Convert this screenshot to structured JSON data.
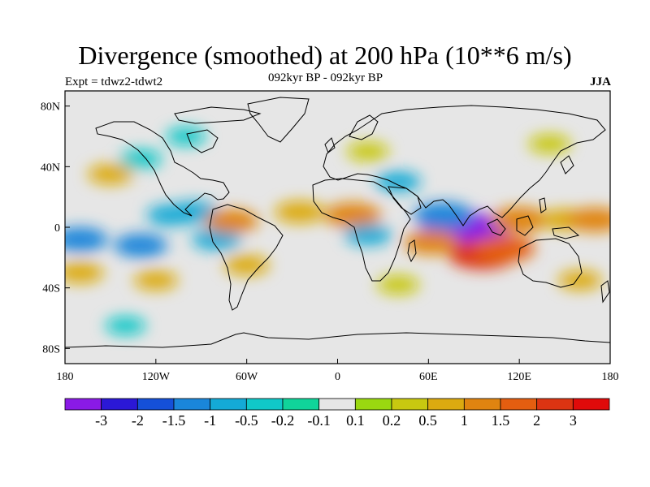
{
  "title": "Divergence (smoothed) at 200 hPa (10**6 m/s)",
  "subtitle": "092kyr BP - 092kyr BP",
  "left_label": "Expt = tdwz2-tdwt2",
  "right_label": "JJA",
  "map": {
    "projection": "cylindrical-equidistant",
    "lon_range": [
      -180,
      180
    ],
    "lat_range": [
      -90,
      90
    ],
    "background_color": "#e6e6e6",
    "x_ticks": [
      {
        "value": -180,
        "label": "180"
      },
      {
        "value": -120,
        "label": "120W"
      },
      {
        "value": -60,
        "label": "60W"
      },
      {
        "value": 0,
        "label": "0"
      },
      {
        "value": 60,
        "label": "60E"
      },
      {
        "value": 120,
        "label": "120E"
      },
      {
        "value": 180,
        "label": "180"
      }
    ],
    "y_ticks": [
      {
        "value": 80,
        "label": "80N"
      },
      {
        "value": 40,
        "label": "40N"
      },
      {
        "value": 0,
        "label": "0"
      },
      {
        "value": -40,
        "label": "40S"
      },
      {
        "value": -80,
        "label": "80S"
      }
    ]
  },
  "colorbar": {
    "labels": [
      "-3",
      "-2",
      "-1.5",
      "-1",
      "-0.5",
      "-0.2",
      "-0.1",
      "0.1",
      "0.2",
      "0.5",
      "1",
      "1.5",
      "2",
      "3"
    ],
    "colors": [
      "#8a1ae6",
      "#2b18d6",
      "#1550d8",
      "#1a86da",
      "#14aad6",
      "#10c8c8",
      "#10d49a",
      "#e6e6e6",
      "#9ad810",
      "#c8c810",
      "#dcaa10",
      "#e08410",
      "#e45e10",
      "#dc3412",
      "#e00a0a"
    ]
  },
  "chart_data": {
    "type": "heatmap",
    "title": "Divergence (smoothed) at 200 hPa (10**6 m/s)",
    "units": "10**6 m/s",
    "season": "JJA",
    "levels": [
      -3,
      -2,
      -1.5,
      -1,
      -0.5,
      -0.2,
      -0.1,
      0.1,
      0.2,
      0.5,
      1,
      1.5,
      2,
      3
    ],
    "features": [
      {
        "lon": 84,
        "lat": -2,
        "value": -3.2
      },
      {
        "lon": 70,
        "lat": 8,
        "value": -1.5
      },
      {
        "lon": 96,
        "lat": -18,
        "value": 2.1
      },
      {
        "lon": 110,
        "lat": -14,
        "value": 1.6
      },
      {
        "lon": 62,
        "lat": -10,
        "value": 1.2
      },
      {
        "lon": -170,
        "lat": -8,
        "value": -1.2
      },
      {
        "lon": -130,
        "lat": -12,
        "value": -1.1
      },
      {
        "lon": -110,
        "lat": 8,
        "value": -0.8
      },
      {
        "lon": -95,
        "lat": 10,
        "value": -0.9
      },
      {
        "lon": -80,
        "lat": -8,
        "value": -0.8
      },
      {
        "lon": -60,
        "lat": -25,
        "value": 0.6
      },
      {
        "lon": -70,
        "lat": 4,
        "value": 1.1
      },
      {
        "lon": -25,
        "lat": 10,
        "value": 0.9
      },
      {
        "lon": 10,
        "lat": 8,
        "value": 1.3
      },
      {
        "lon": 20,
        "lat": -5,
        "value": -0.7
      },
      {
        "lon": 40,
        "lat": 30,
        "value": -0.6
      },
      {
        "lon": 120,
        "lat": 5,
        "value": 1.4
      },
      {
        "lon": 150,
        "lat": 5,
        "value": 0.8
      },
      {
        "lon": 170,
        "lat": 5,
        "value": 1.2
      },
      {
        "lon": -150,
        "lat": 35,
        "value": 0.6
      },
      {
        "lon": -170,
        "lat": -30,
        "value": 0.7
      },
      {
        "lon": -120,
        "lat": -35,
        "value": 0.5
      },
      {
        "lon": 40,
        "lat": -38,
        "value": 0.4
      },
      {
        "lon": 160,
        "lat": -35,
        "value": 0.5
      },
      {
        "lon": -130,
        "lat": 45,
        "value": -0.4
      },
      {
        "lon": 20,
        "lat": 50,
        "value": 0.4
      },
      {
        "lon": 140,
        "lat": 55,
        "value": 0.4
      },
      {
        "lon": -100,
        "lat": 60,
        "value": -0.3
      },
      {
        "lon": -140,
        "lat": -65,
        "value": -0.3
      }
    ]
  }
}
